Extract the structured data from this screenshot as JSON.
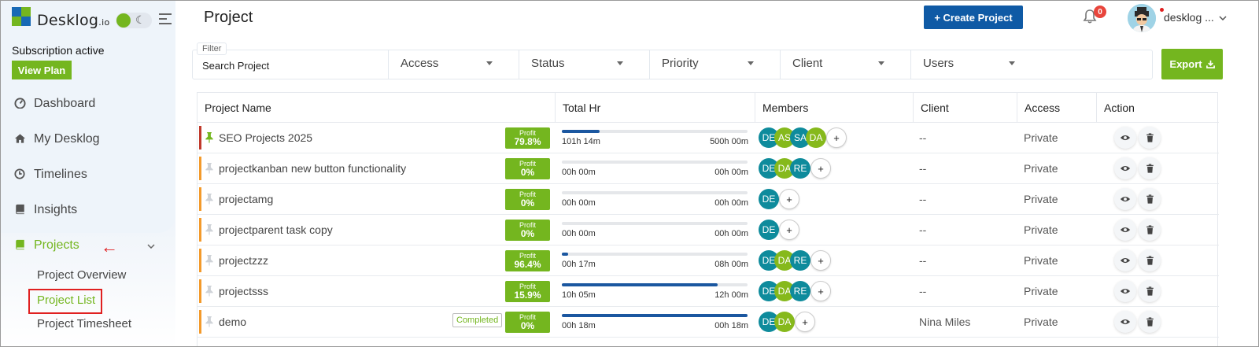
{
  "app": {
    "logo_text": "Desklog",
    "logo_suffix": ".io",
    "subscription_text": "Subscription active",
    "view_plan_label": "View Plan"
  },
  "sidebar": {
    "items": [
      {
        "label": "Dashboard",
        "icon": "dashboard-icon"
      },
      {
        "label": "My Desklog",
        "icon": "home-icon"
      },
      {
        "label": "Timelines",
        "icon": "clock-icon"
      },
      {
        "label": "Insights",
        "icon": "book-icon"
      },
      {
        "label": "Projects",
        "icon": "book-icon",
        "active": true
      }
    ],
    "arrow_glyph": "←",
    "sub_items": [
      {
        "label": "Project Overview"
      },
      {
        "label": "Project List",
        "active": true
      },
      {
        "label": "Project Timesheet"
      }
    ]
  },
  "header": {
    "title": "Project",
    "create_label": "+ Create Project",
    "notification_count": "0",
    "user_name": "desklog ..."
  },
  "filters": {
    "legend": "Filter",
    "search_placeholder": "Search Project",
    "selects": [
      "Access",
      "Status",
      "Priority",
      "Client",
      "Users"
    ],
    "export_label": "Export"
  },
  "table": {
    "columns": [
      "Project Name",
      "Total Hr",
      "Members",
      "Client",
      "Access",
      "Action"
    ],
    "profit_label": "Profit",
    "rows": [
      {
        "name": "SEO Projects 2025",
        "pinned": true,
        "status_badge": "",
        "profit": "79.8%",
        "spent": "101h 14m",
        "total": "500h 00m",
        "progress": 0.2025,
        "members": [
          "DE",
          "AS",
          "SA",
          "DA"
        ],
        "client": "--",
        "access": "Private"
      },
      {
        "name": "projectkanban new button functionality",
        "pinned": false,
        "status_badge": "",
        "profit": "0%",
        "spent": "00h 00m",
        "total": "00h 00m",
        "progress": 0,
        "members": [
          "DE",
          "DA",
          "RE"
        ],
        "client": "--",
        "access": "Private"
      },
      {
        "name": "projectamg",
        "pinned": false,
        "status_badge": "",
        "profit": "0%",
        "spent": "00h 00m",
        "total": "00h 00m",
        "progress": 0,
        "members": [
          "DE"
        ],
        "client": "--",
        "access": "Private"
      },
      {
        "name": "projectparent task copy",
        "pinned": false,
        "status_badge": "",
        "profit": "0%",
        "spent": "00h 00m",
        "total": "00h 00m",
        "progress": 0,
        "members": [
          "DE"
        ],
        "client": "--",
        "access": "Private"
      },
      {
        "name": "projectzzz",
        "pinned": false,
        "status_badge": "",
        "profit": "96.4%",
        "spent": "00h 17m",
        "total": "08h 00m",
        "progress": 0.035,
        "members": [
          "DE",
          "DA",
          "RE"
        ],
        "client": "--",
        "access": "Private"
      },
      {
        "name": "projectsss",
        "pinned": false,
        "status_badge": "",
        "profit": "15.9%",
        "spent": "10h 05m",
        "total": "12h 00m",
        "progress": 0.84,
        "members": [
          "DE",
          "DA",
          "RE"
        ],
        "client": "--",
        "access": "Private"
      },
      {
        "name": "demo",
        "pinned": false,
        "status_badge": "Completed",
        "profit": "0%",
        "spent": "00h 18m",
        "total": "00h 18m",
        "progress": 1.0,
        "members": [
          "DE",
          "DA"
        ],
        "client": "Nina Miles",
        "access": "Private"
      }
    ]
  },
  "colors": {
    "brand_green": "#74b61f",
    "brand_blue": "#0f5aa5",
    "member_teal": "#0e8b9c",
    "member_green": "#86b91c",
    "progress_blue": "#1b57a0",
    "row_bar_orange": "#f39a2b",
    "row_bar_red": "#c0392b"
  }
}
